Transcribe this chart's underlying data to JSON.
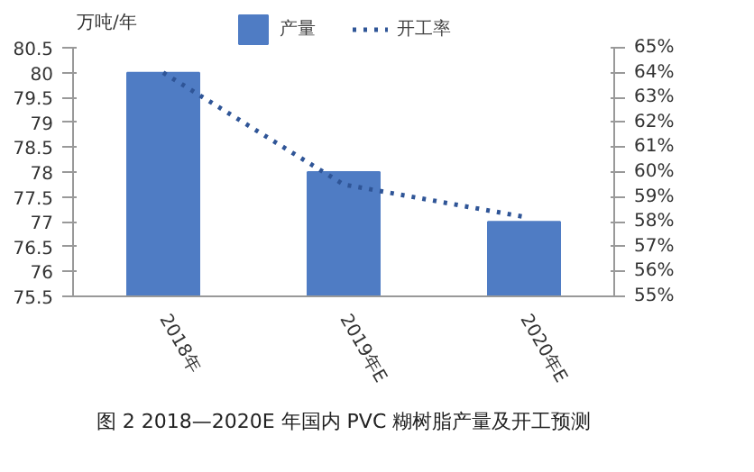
{
  "chart_data": {
    "type": "bar",
    "title": "图 2 2018—2020E 年国内 PVC 糊树脂产量及开工预测",
    "ylabel": "万吨/年",
    "categories": [
      "2018年",
      "2019年E",
      "2020年E"
    ],
    "series": [
      {
        "name": "产量",
        "color": "#4f7cc4",
        "values": [
          80,
          78,
          77
        ]
      },
      {
        "name": "开工率",
        "type": "line",
        "axis": "y2",
        "color": "#2f5597",
        "line_style": "dotted",
        "values": [
          64,
          59.5,
          58.2
        ]
      }
    ],
    "ylim": [
      75.5,
      80.5
    ],
    "yticks": [
      75.5,
      76,
      76.5,
      77,
      77.5,
      78,
      78.5,
      79,
      79.5,
      80,
      80.5
    ],
    "y2lim": [
      55,
      65
    ],
    "y2ticks": [
      {
        "value": 55,
        "label": "55%"
      },
      {
        "value": 56,
        "label": "56%"
      },
      {
        "value": 57,
        "label": "57%"
      },
      {
        "value": 58,
        "label": "58%"
      },
      {
        "value": 59,
        "label": "59%"
      },
      {
        "value": 60,
        "label": "60%"
      },
      {
        "value": 61,
        "label": "61%"
      },
      {
        "value": 62,
        "label": "62%"
      },
      {
        "value": 63,
        "label": "63%"
      },
      {
        "value": 64,
        "label": "64%"
      },
      {
        "value": 65,
        "label": "65%"
      }
    ],
    "legend": "top",
    "grid": false
  }
}
